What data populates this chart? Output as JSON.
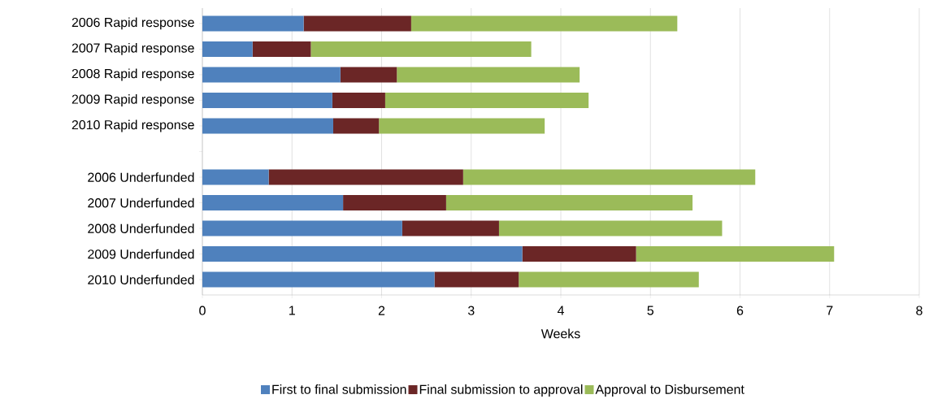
{
  "chart_data": {
    "type": "bar",
    "orientation": "horizontal",
    "stacked": true,
    "xlabel": "Weeks",
    "categories": [
      "2006 Rapid response",
      "2007 Rapid response",
      "2008 Rapid response",
      "2009 Rapid response",
      "2010 Rapid response",
      null,
      "2006 Underfunded",
      "2007 Underfunded",
      "2008 Underfunded",
      "2009 Underfunded",
      "2010 Underfunded"
    ],
    "series": [
      {
        "name": "First to final submission",
        "color": "#4f81bd",
        "values": [
          1.13,
          0.56,
          1.54,
          1.45,
          1.46,
          null,
          0.74,
          1.57,
          2.23,
          3.57,
          2.59
        ]
      },
      {
        "name": "Final submission to approval",
        "color": "#6b2626",
        "values": [
          1.2,
          0.65,
          0.63,
          0.59,
          0.51,
          null,
          2.17,
          1.15,
          1.08,
          1.27,
          0.94
        ]
      },
      {
        "name": "Approval to Disbursement",
        "color": "#9bbb59",
        "values": [
          2.97,
          2.46,
          2.04,
          2.27,
          1.85,
          null,
          3.26,
          2.75,
          2.49,
          2.21,
          2.01
        ]
      }
    ],
    "xlim": [
      0,
      8
    ],
    "xticks": [
      0,
      1,
      2,
      3,
      4,
      5,
      6,
      7,
      8
    ],
    "grid": "x",
    "legend": "bottom"
  }
}
